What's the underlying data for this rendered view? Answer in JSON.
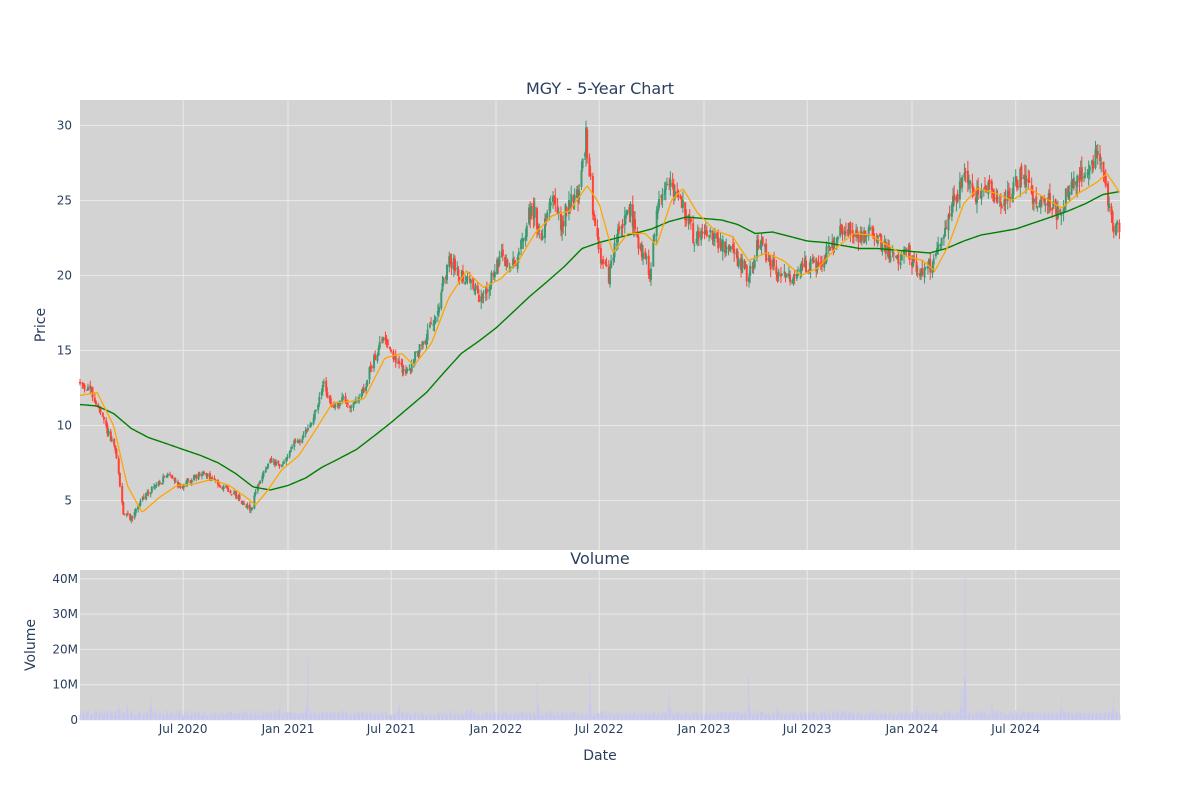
{
  "colors": {
    "plot_bg": "#d3d3d3",
    "grid": "#e9e9e9",
    "up": "#3d9970",
    "down": "#ff4136",
    "ma_short": "#ffa500",
    "ma_long": "#008000",
    "volume": "#c7c7f0",
    "text": "#2a3f5f"
  },
  "chart_data": [
    {
      "type": "candlestick",
      "title": "MGY - 5-Year Chart",
      "xlabel": "",
      "ylabel": "Price",
      "xlim": [
        "2020-01-02",
        "2024-12-31"
      ],
      "ylim": [
        1.7,
        31.7
      ],
      "yticks": [
        5,
        10,
        15,
        20,
        25,
        30
      ],
      "grid": true,
      "legend": "none",
      "anchors": [
        [
          "2020-01-02",
          12.8
        ],
        [
          "2020-01-20",
          12.4
        ],
        [
          "2020-02-10",
          10.5
        ],
        [
          "2020-03-05",
          8.2
        ],
        [
          "2020-03-18",
          4.2
        ],
        [
          "2020-04-01",
          3.8
        ],
        [
          "2020-04-15",
          4.8
        ],
        [
          "2020-05-01",
          5.6
        ],
        [
          "2020-05-20",
          6.2
        ],
        [
          "2020-06-08",
          6.8
        ],
        [
          "2020-06-25",
          5.9
        ],
        [
          "2020-07-15",
          6.4
        ],
        [
          "2020-08-05",
          6.8
        ],
        [
          "2020-08-25",
          6.3
        ],
        [
          "2020-09-15",
          5.8
        ],
        [
          "2020-10-05",
          5.2
        ],
        [
          "2020-10-28",
          4.4
        ],
        [
          "2020-11-10",
          6.2
        ],
        [
          "2020-12-01",
          7.6
        ],
        [
          "2020-12-20",
          7.2
        ],
        [
          "2021-01-10",
          8.8
        ],
        [
          "2021-01-28",
          9.2
        ],
        [
          "2021-02-15",
          10.5
        ],
        [
          "2021-03-05",
          12.8
        ],
        [
          "2021-03-20",
          11.0
        ],
        [
          "2021-04-05",
          11.8
        ],
        [
          "2021-04-25",
          11.2
        ],
        [
          "2021-05-15",
          12.5
        ],
        [
          "2021-06-01",
          14.5
        ],
        [
          "2021-06-20",
          16.0
        ],
        [
          "2021-07-10",
          14.2
        ],
        [
          "2021-07-28",
          13.5
        ],
        [
          "2021-08-15",
          14.8
        ],
        [
          "2021-09-05",
          16.2
        ],
        [
          "2021-09-25",
          18.5
        ],
        [
          "2021-10-12",
          21.0
        ],
        [
          "2021-10-30",
          20.2
        ],
        [
          "2021-11-20",
          19.5
        ],
        [
          "2021-12-05",
          18.2
        ],
        [
          "2021-12-20",
          19.5
        ],
        [
          "2022-01-10",
          21.2
        ],
        [
          "2022-01-28",
          20.5
        ],
        [
          "2022-02-15",
          22.0
        ],
        [
          "2022-03-05",
          24.8
        ],
        [
          "2022-03-20",
          22.5
        ],
        [
          "2022-04-08",
          25.5
        ],
        [
          "2022-04-25",
          23.2
        ],
        [
          "2022-05-10",
          25.0
        ],
        [
          "2022-05-28",
          25.5
        ],
        [
          "2022-06-08",
          29.2
        ],
        [
          "2022-06-20",
          24.5
        ],
        [
          "2022-07-05",
          21.0
        ],
        [
          "2022-07-18",
          19.8
        ],
        [
          "2022-08-05",
          23.2
        ],
        [
          "2022-08-25",
          24.2
        ],
        [
          "2022-09-10",
          22.0
        ],
        [
          "2022-09-28",
          20.2
        ],
        [
          "2022-10-12",
          24.8
        ],
        [
          "2022-10-28",
          26.5
        ],
        [
          "2022-11-12",
          25.5
        ],
        [
          "2022-11-28",
          24.2
        ],
        [
          "2022-12-15",
          22.5
        ],
        [
          "2023-01-05",
          23.2
        ],
        [
          "2023-01-25",
          22.2
        ],
        [
          "2023-02-15",
          21.5
        ],
        [
          "2023-03-05",
          21.0
        ],
        [
          "2023-03-20",
          19.8
        ],
        [
          "2023-04-08",
          22.5
        ],
        [
          "2023-04-25",
          21.0
        ],
        [
          "2023-05-15",
          19.8
        ],
        [
          "2023-06-05",
          20.0
        ],
        [
          "2023-06-25",
          20.8
        ],
        [
          "2023-07-15",
          20.5
        ],
        [
          "2023-08-05",
          21.5
        ],
        [
          "2023-08-25",
          22.8
        ],
        [
          "2023-09-15",
          23.2
        ],
        [
          "2023-10-05",
          22.5
        ],
        [
          "2023-10-25",
          22.8
        ],
        [
          "2023-11-15",
          21.8
        ],
        [
          "2023-12-05",
          21.2
        ],
        [
          "2023-12-25",
          21.5
        ],
        [
          "2024-01-15",
          20.0
        ],
        [
          "2024-02-05",
          20.8
        ],
        [
          "2024-02-25",
          23.0
        ],
        [
          "2024-03-15",
          25.0
        ],
        [
          "2024-04-05",
          26.5
        ],
        [
          "2024-04-25",
          25.2
        ],
        [
          "2024-05-15",
          25.8
        ],
        [
          "2024-06-05",
          24.5
        ],
        [
          "2024-06-25",
          25.8
        ],
        [
          "2024-07-15",
          26.8
        ],
        [
          "2024-08-05",
          24.8
        ],
        [
          "2024-08-25",
          25.2
        ],
        [
          "2024-09-12",
          24.0
        ],
        [
          "2024-09-30",
          25.5
        ],
        [
          "2024-10-20",
          26.5
        ],
        [
          "2024-11-10",
          27.5
        ],
        [
          "2024-11-25",
          28.5
        ],
        [
          "2024-12-05",
          26.5
        ],
        [
          "2024-12-15",
          24.0
        ],
        [
          "2024-12-22",
          23.0
        ],
        [
          "2024-12-31",
          23.2
        ]
      ],
      "ma_short_anchors": [
        [
          "2020-01-02",
          12.0
        ],
        [
          "2020-02-01",
          12.2
        ],
        [
          "2020-03-01",
          10.0
        ],
        [
          "2020-03-25",
          6.0
        ],
        [
          "2020-04-20",
          4.2
        ],
        [
          "2020-05-20",
          5.2
        ],
        [
          "2020-06-20",
          6.0
        ],
        [
          "2020-07-20",
          6.1
        ],
        [
          "2020-08-20",
          6.4
        ],
        [
          "2020-09-20",
          6.0
        ],
        [
          "2020-10-20",
          5.2
        ],
        [
          "2020-11-05",
          4.7
        ],
        [
          "2020-11-25",
          5.6
        ],
        [
          "2020-12-20",
          7.0
        ],
        [
          "2021-01-20",
          8.0
        ],
        [
          "2021-02-20",
          9.8
        ],
        [
          "2021-03-20",
          11.5
        ],
        [
          "2021-04-20",
          11.6
        ],
        [
          "2021-05-15",
          11.8
        ],
        [
          "2021-06-20",
          14.5
        ],
        [
          "2021-07-20",
          14.8
        ],
        [
          "2021-08-10",
          14.0
        ],
        [
          "2021-09-10",
          15.5
        ],
        [
          "2021-10-10",
          18.5
        ],
        [
          "2021-11-10",
          20.3
        ],
        [
          "2021-12-10",
          19.2
        ],
        [
          "2022-01-10",
          19.8
        ],
        [
          "2022-02-10",
          21.0
        ],
        [
          "2022-03-10",
          22.8
        ],
        [
          "2022-04-10",
          24.0
        ],
        [
          "2022-05-10",
          24.3
        ],
        [
          "2022-06-10",
          26.0
        ],
        [
          "2022-07-01",
          24.8
        ],
        [
          "2022-07-25",
          21.5
        ],
        [
          "2022-08-20",
          22.8
        ],
        [
          "2022-09-20",
          22.8
        ],
        [
          "2022-10-10",
          22.0
        ],
        [
          "2022-11-05",
          25.0
        ],
        [
          "2022-11-25",
          25.8
        ],
        [
          "2022-12-20",
          24.2
        ],
        [
          "2023-01-20",
          23.0
        ],
        [
          "2023-02-20",
          22.6
        ],
        [
          "2023-03-20",
          21.0
        ],
        [
          "2023-04-20",
          21.5
        ],
        [
          "2023-05-20",
          21.0
        ],
        [
          "2023-06-20",
          20.0
        ],
        [
          "2023-07-20",
          20.5
        ],
        [
          "2023-08-20",
          21.8
        ],
        [
          "2023-09-20",
          22.8
        ],
        [
          "2023-10-20",
          22.7
        ],
        [
          "2023-11-20",
          22.0
        ],
        [
          "2023-12-20",
          21.3
        ],
        [
          "2024-01-20",
          21.0
        ],
        [
          "2024-02-10",
          20.3
        ],
        [
          "2024-03-05",
          22.0
        ],
        [
          "2024-04-01",
          24.8
        ],
        [
          "2024-04-25",
          25.8
        ],
        [
          "2024-05-25",
          25.5
        ],
        [
          "2024-06-25",
          25.0
        ],
        [
          "2024-07-25",
          25.8
        ],
        [
          "2024-08-20",
          25.2
        ],
        [
          "2024-09-20",
          24.5
        ],
        [
          "2024-10-20",
          25.5
        ],
        [
          "2024-11-20",
          26.2
        ],
        [
          "2024-12-08",
          26.8
        ],
        [
          "2024-12-31",
          25.5
        ]
      ],
      "ma_long_anchors": [
        [
          "2020-01-02",
          11.4
        ],
        [
          "2020-02-01",
          11.3
        ],
        [
          "2020-03-01",
          10.8
        ],
        [
          "2020-04-01",
          9.8
        ],
        [
          "2020-05-01",
          9.2
        ],
        [
          "2020-06-01",
          8.8
        ],
        [
          "2020-07-01",
          8.4
        ],
        [
          "2020-08-01",
          8.0
        ],
        [
          "2020-09-01",
          7.5
        ],
        [
          "2020-10-01",
          6.8
        ],
        [
          "2020-11-01",
          5.9
        ],
        [
          "2020-12-01",
          5.7
        ],
        [
          "2021-01-01",
          6.0
        ],
        [
          "2021-02-01",
          6.5
        ],
        [
          "2021-03-01",
          7.2
        ],
        [
          "2021-04-01",
          7.8
        ],
        [
          "2021-05-01",
          8.4
        ],
        [
          "2021-06-01",
          9.3
        ],
        [
          "2021-07-01",
          10.2
        ],
        [
          "2021-08-01",
          11.2
        ],
        [
          "2021-09-01",
          12.2
        ],
        [
          "2021-10-01",
          13.5
        ],
        [
          "2021-11-01",
          14.8
        ],
        [
          "2021-12-01",
          15.6
        ],
        [
          "2022-01-01",
          16.5
        ],
        [
          "2022-02-01",
          17.6
        ],
        [
          "2022-03-01",
          18.6
        ],
        [
          "2022-04-01",
          19.6
        ],
        [
          "2022-05-01",
          20.6
        ],
        [
          "2022-06-01",
          21.8
        ],
        [
          "2022-07-01",
          22.2
        ],
        [
          "2022-08-01",
          22.5
        ],
        [
          "2022-09-01",
          22.8
        ],
        [
          "2022-10-01",
          23.1
        ],
        [
          "2022-11-01",
          23.6
        ],
        [
          "2022-12-01",
          23.9
        ],
        [
          "2023-01-01",
          23.8
        ],
        [
          "2023-02-01",
          23.7
        ],
        [
          "2023-03-01",
          23.4
        ],
        [
          "2023-04-01",
          22.8
        ],
        [
          "2023-05-01",
          22.9
        ],
        [
          "2023-06-01",
          22.6
        ],
        [
          "2023-07-01",
          22.3
        ],
        [
          "2023-08-01",
          22.2
        ],
        [
          "2023-09-01",
          22.0
        ],
        [
          "2023-10-01",
          21.8
        ],
        [
          "2023-11-01",
          21.8
        ],
        [
          "2023-12-01",
          21.7
        ],
        [
          "2024-01-01",
          21.6
        ],
        [
          "2024-02-01",
          21.5
        ],
        [
          "2024-03-01",
          21.8
        ],
        [
          "2024-04-01",
          22.3
        ],
        [
          "2024-05-01",
          22.7
        ],
        [
          "2024-06-01",
          22.9
        ],
        [
          "2024-07-01",
          23.1
        ],
        [
          "2024-08-01",
          23.5
        ],
        [
          "2024-09-01",
          23.9
        ],
        [
          "2024-10-01",
          24.3
        ],
        [
          "2024-11-01",
          24.8
        ],
        [
          "2024-12-01",
          25.4
        ],
        [
          "2024-12-31",
          25.6
        ]
      ]
    },
    {
      "type": "bar",
      "title": "Volume",
      "xlabel": "Date",
      "ylabel": "Volume",
      "ylim": [
        0,
        42500000
      ],
      "yticks": [
        0,
        10000000,
        20000000,
        30000000,
        40000000
      ],
      "ytick_labels": [
        "0",
        "10M",
        "20M",
        "30M",
        "40M"
      ],
      "xticks": [
        "2020-07-01",
        "2021-01-01",
        "2021-07-01",
        "2022-01-01",
        "2022-07-01",
        "2023-01-01",
        "2023-07-01",
        "2024-01-01",
        "2024-07-01"
      ],
      "xtick_labels": [
        "Jul 2020",
        "Jan 2021",
        "Jul 2021",
        "Jan 2022",
        "Jul 2022",
        "Jan 2023",
        "Jul 2023",
        "Jan 2024",
        "Jul 2024"
      ],
      "base_volume": 1800000,
      "spikes": [
        [
          "2020-03-10",
          5000000
        ],
        [
          "2020-03-25",
          4500000
        ],
        [
          "2020-05-05",
          7000000
        ],
        [
          "2020-12-18",
          5000000
        ],
        [
          "2021-02-05",
          17500000
        ],
        [
          "2021-07-15",
          4500000
        ],
        [
          "2021-11-20",
          5000000
        ],
        [
          "2022-03-15",
          10500000
        ],
        [
          "2022-06-15",
          13500000
        ],
        [
          "2022-11-01",
          8000000
        ],
        [
          "2023-03-20",
          12500000
        ],
        [
          "2023-05-10",
          4000000
        ],
        [
          "2024-01-10",
          4000000
        ],
        [
          "2024-03-28",
          8000000
        ],
        [
          "2024-04-03",
          40500000
        ],
        [
          "2024-05-20",
          5000000
        ],
        [
          "2024-09-20",
          6000000
        ],
        [
          "2024-12-20",
          7000000
        ]
      ]
    }
  ]
}
